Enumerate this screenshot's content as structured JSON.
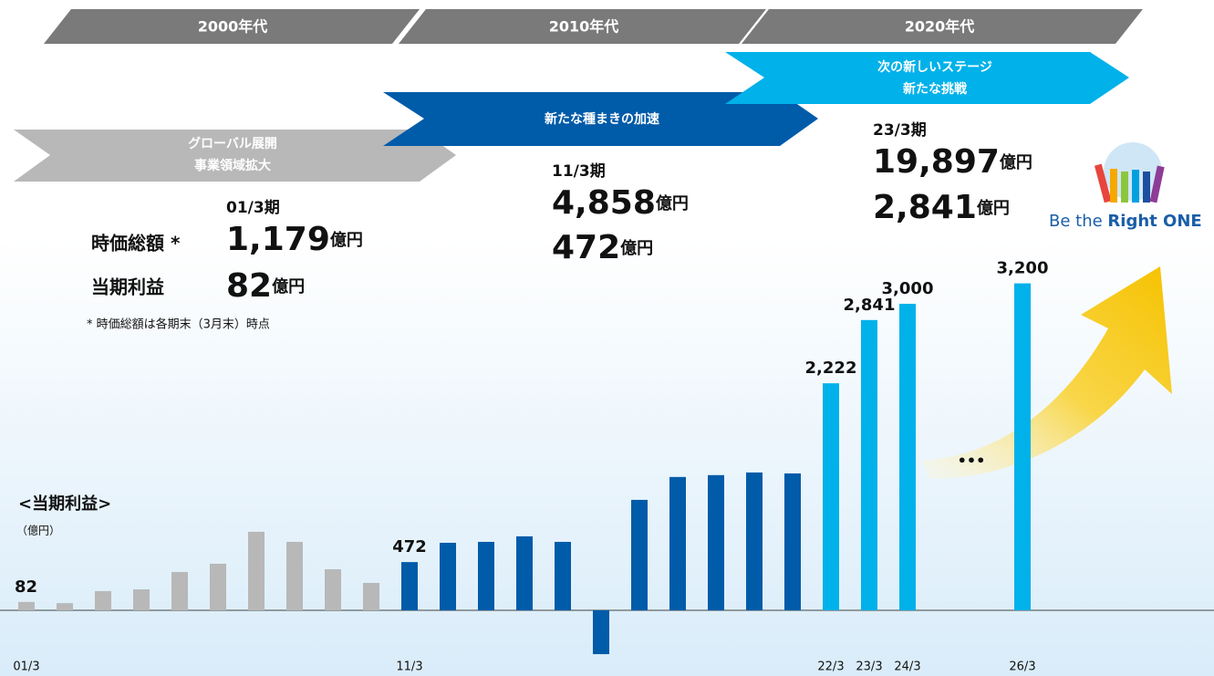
{
  "eras": [
    "2000年代",
    "2010年代",
    "2020年代"
  ],
  "stages": [
    [
      "グローバル展開",
      "事業領域拡大"
    ],
    [
      "新たな種まきの加速"
    ],
    [
      "次の新しいステージ",
      "新たな挑戦"
    ]
  ],
  "row_labels": [
    "時価総額 *",
    "当期利益"
  ],
  "unit": "億円",
  "periods": [
    {
      "label": "01/3期",
      "market_cap": "1,179",
      "profit": "82"
    },
    {
      "label": "11/3期",
      "market_cap": "4,858",
      "profit": "472"
    },
    {
      "label": "23/3期",
      "market_cap": "19,897",
      "profit": "2,841"
    }
  ],
  "footnote": "* 時価総額は各期末（3月末）時点",
  "ellipsis": "•••",
  "logo": {
    "prefix": "Be the",
    "emphasis": "Right ONE"
  },
  "chart_data": {
    "type": "bar",
    "title": "<当期利益>",
    "y_label": "（億円）",
    "categories": [
      "01/3",
      null,
      null,
      null,
      null,
      null,
      null,
      null,
      null,
      null,
      "11/3",
      null,
      null,
      null,
      null,
      null,
      null,
      null,
      null,
      null,
      null,
      "22/3",
      "23/3",
      "24/3",
      null,
      null,
      "26/3"
    ],
    "values": [
      82,
      70,
      188,
      205,
      375,
      456,
      769,
      670,
      402,
      268,
      472,
      661,
      670,
      724,
      670,
      -429,
      1081,
      1305,
      1323,
      1349,
      1340,
      2222,
      2841,
      3000,
      null,
      null,
      3200
    ],
    "value_labels": [
      "82",
      null,
      null,
      null,
      null,
      null,
      null,
      null,
      null,
      null,
      "472",
      null,
      null,
      null,
      null,
      null,
      null,
      null,
      null,
      null,
      null,
      "2,222",
      "2,841",
      "3,000",
      null,
      null,
      "3,200"
    ],
    "colors": [
      "#b8b8b8",
      "#b8b8b8",
      "#b8b8b8",
      "#b8b8b8",
      "#b8b8b8",
      "#b8b8b8",
      "#b8b8b8",
      "#b8b8b8",
      "#b8b8b8",
      "#b8b8b8",
      "#005ba9",
      "#005ba9",
      "#005ba9",
      "#005ba9",
      "#005ba9",
      "#005ba9",
      "#005ba9",
      "#005ba9",
      "#005ba9",
      "#005ba9",
      "#005ba9",
      "#00b1ea",
      "#00b1ea",
      "#00b1ea",
      "#00b1ea",
      "#00b1ea",
      "#00b1ea"
    ],
    "ylim": [
      -500,
      3500
    ],
    "grid": false
  }
}
